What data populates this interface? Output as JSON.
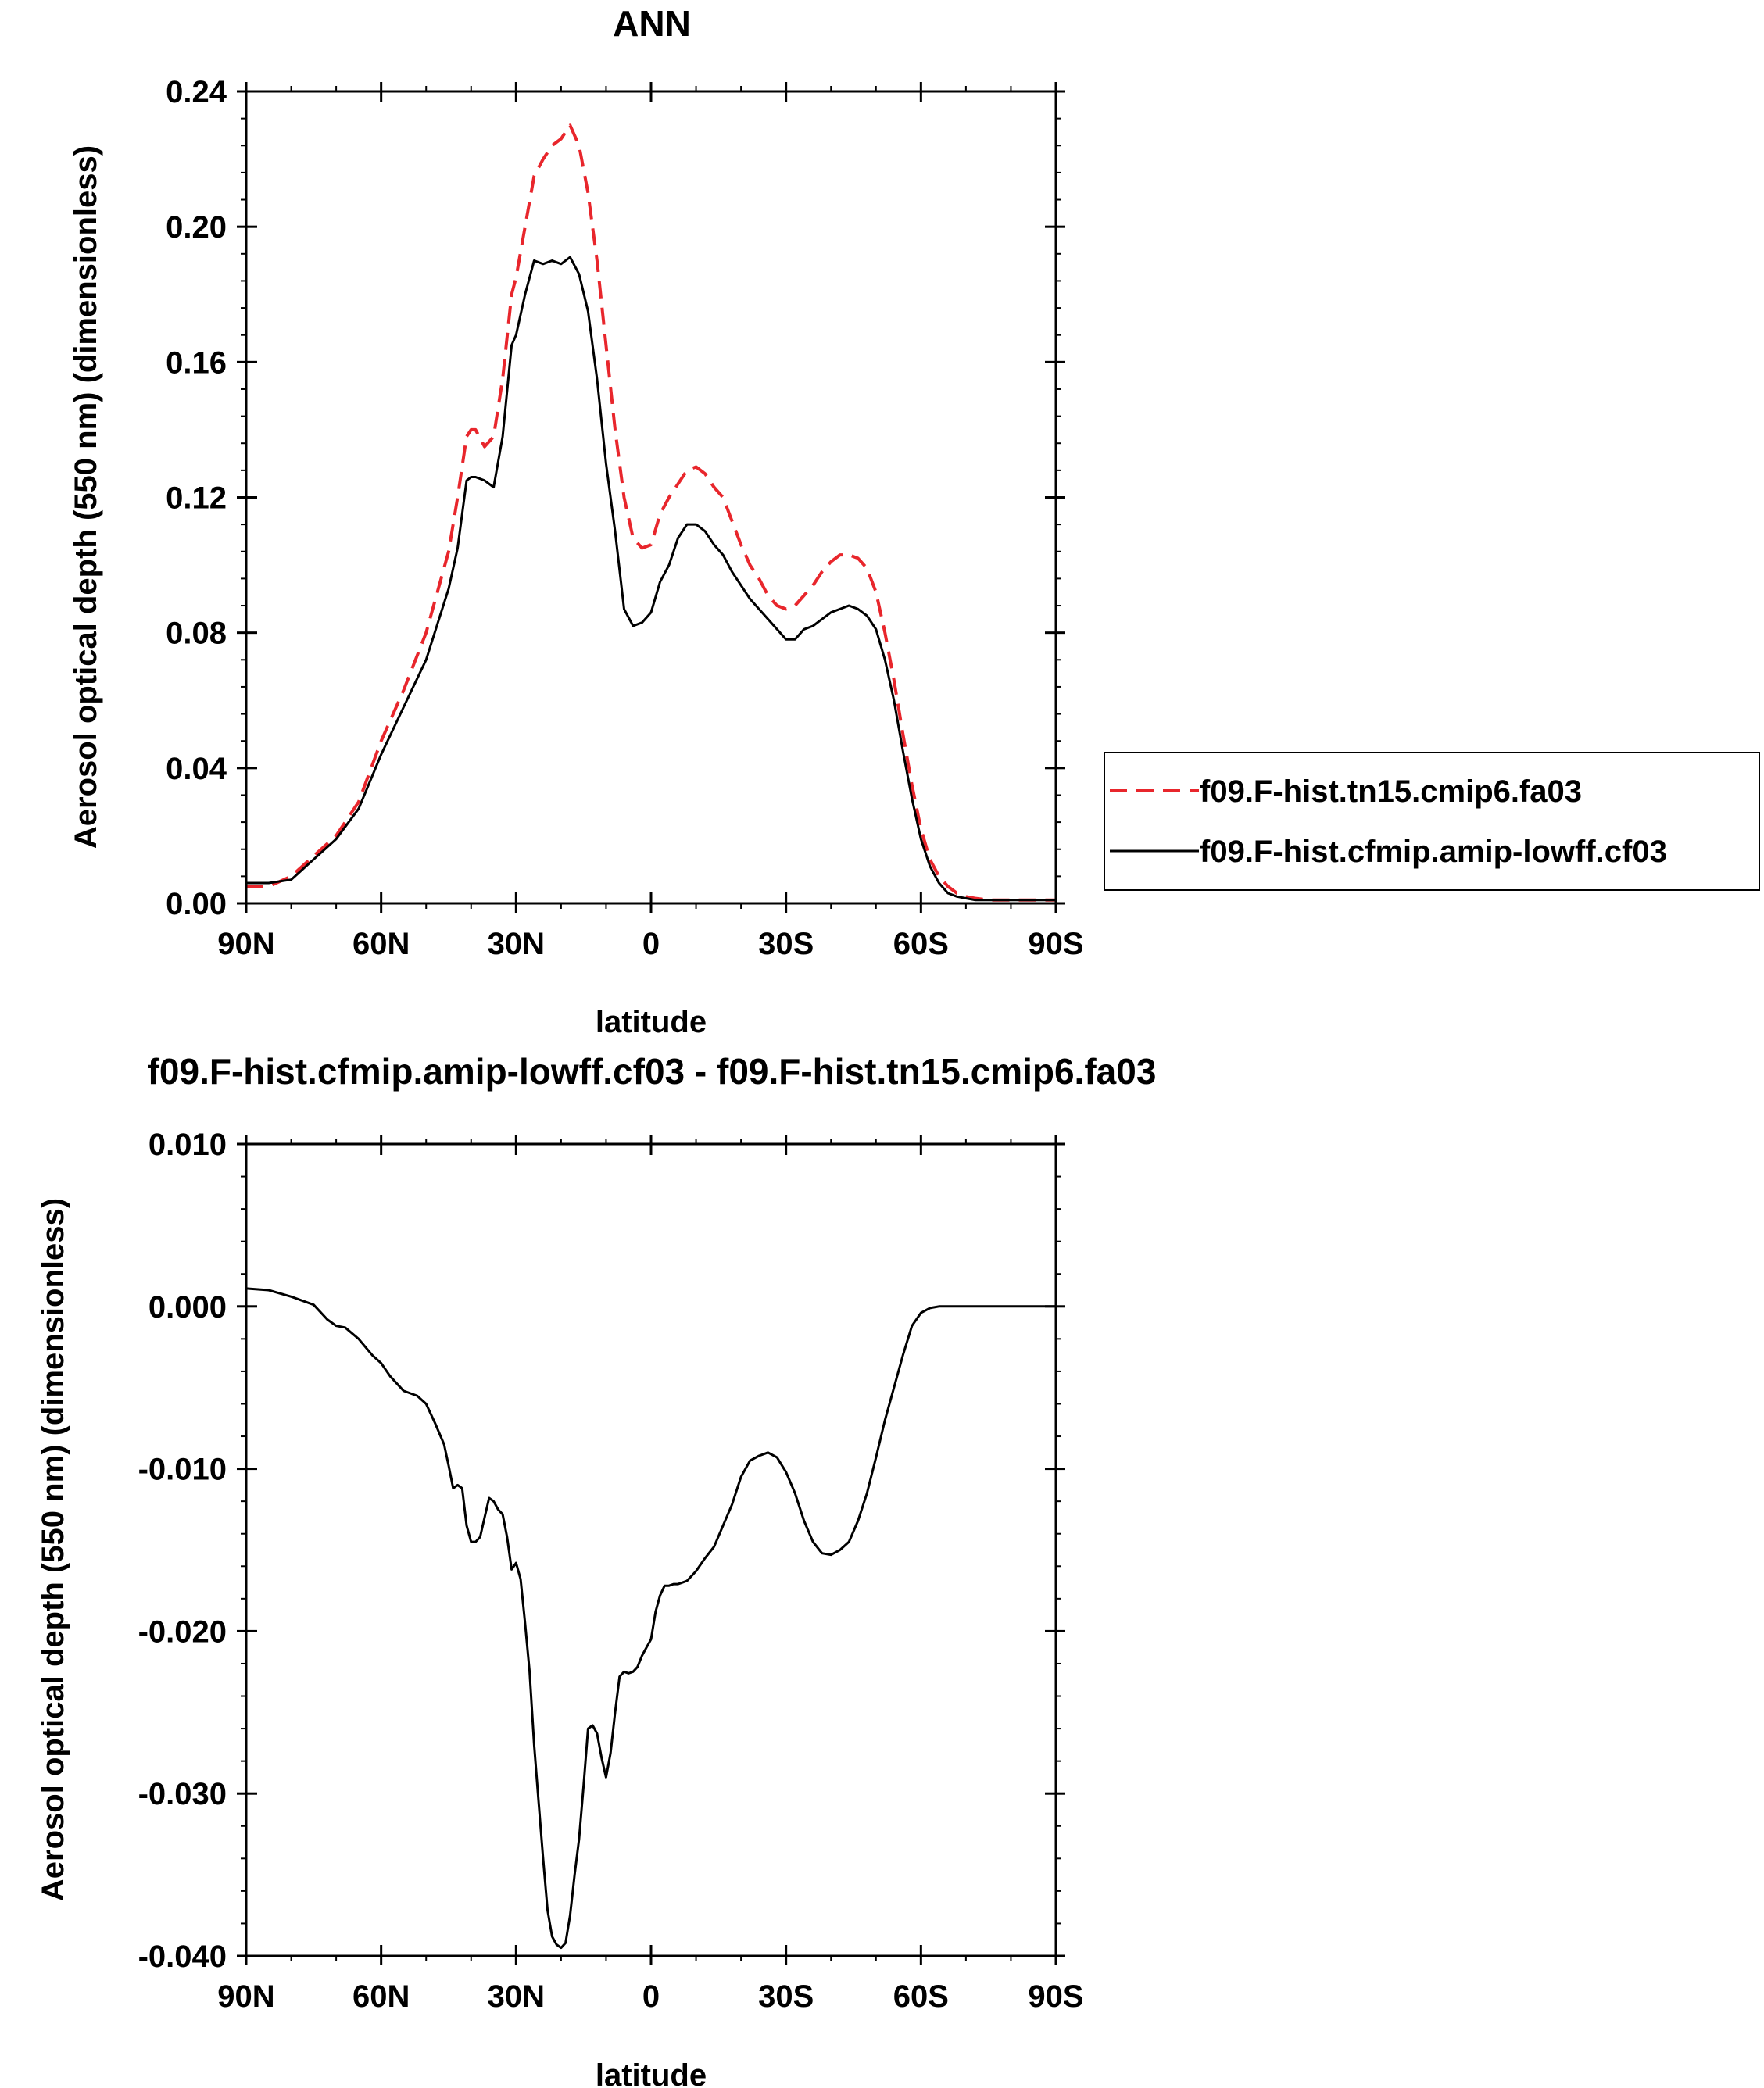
{
  "colors": {
    "red": "#e8262c",
    "black": "#000000"
  },
  "chart_data": [
    {
      "type": "line",
      "title": "ANN",
      "xlabel": "latitude",
      "ylabel": "Aerosol optical depth (550 nm) (dimensionless)",
      "xlim": [
        90,
        -90
      ],
      "ylim": [
        0.0,
        0.24
      ],
      "xticks": [
        90,
        60,
        30,
        0,
        -30,
        -60,
        -90
      ],
      "xtick_labels": [
        "90N",
        "60N",
        "30N",
        "0",
        "30S",
        "60S",
        "90S"
      ],
      "yticks": [
        0.0,
        0.04,
        0.08,
        0.12,
        0.16,
        0.2,
        0.24
      ],
      "ytick_labels": [
        "0.00",
        "0.04",
        "0.08",
        "0.12",
        "0.16",
        "0.20",
        "0.24"
      ],
      "legend": {
        "placement": "outside-right"
      },
      "series": [
        {
          "name": "f09.F-hist.tn15.cmip6.fa03",
          "style": "dashed",
          "color": "#e8262c",
          "x": [
            90,
            85,
            80,
            75,
            70,
            65,
            60,
            55,
            50,
            45,
            43,
            41,
            40,
            39,
            37,
            35,
            33,
            31,
            30,
            28,
            26,
            24,
            22,
            20,
            18,
            16,
            14,
            12,
            10,
            8,
            6,
            4,
            2,
            0,
            -2,
            -4,
            -6,
            -8,
            -10,
            -12,
            -14,
            -16,
            -18,
            -20,
            -22,
            -24,
            -26,
            -28,
            -30,
            -32,
            -34,
            -36,
            -38,
            -40,
            -42,
            -44,
            -46,
            -48,
            -50,
            -52,
            -54,
            -56,
            -58,
            -60,
            -62,
            -64,
            -66,
            -68,
            -70,
            -72,
            -75,
            -80,
            -85,
            -90
          ],
          "y": [
            0.005,
            0.005,
            0.008,
            0.014,
            0.02,
            0.03,
            0.048,
            0.063,
            0.08,
            0.104,
            0.12,
            0.138,
            0.14,
            0.14,
            0.135,
            0.138,
            0.155,
            0.18,
            0.185,
            0.2,
            0.215,
            0.22,
            0.224,
            0.226,
            0.23,
            0.224,
            0.21,
            0.19,
            0.165,
            0.14,
            0.12,
            0.108,
            0.105,
            0.106,
            0.115,
            0.12,
            0.124,
            0.128,
            0.129,
            0.127,
            0.123,
            0.12,
            0.113,
            0.106,
            0.1,
            0.096,
            0.091,
            0.088,
            0.087,
            0.088,
            0.091,
            0.094,
            0.098,
            0.101,
            0.103,
            0.103,
            0.102,
            0.099,
            0.092,
            0.08,
            0.066,
            0.05,
            0.035,
            0.022,
            0.013,
            0.008,
            0.005,
            0.003,
            0.002,
            0.0015,
            0.001,
            0.001,
            0.001,
            0.001
          ]
        },
        {
          "name": "f09.F-hist.cfmip.amip-lowff.cf03",
          "style": "solid",
          "color": "#000000",
          "x": [
            90,
            85,
            80,
            75,
            70,
            65,
            60,
            55,
            50,
            45,
            43,
            41,
            40,
            39,
            37,
            35,
            33,
            31,
            30,
            28,
            26,
            24,
            22,
            20,
            18,
            16,
            14,
            12,
            10,
            8,
            6,
            4,
            2,
            0,
            -2,
            -4,
            -6,
            -8,
            -10,
            -12,
            -14,
            -16,
            -18,
            -20,
            -22,
            -24,
            -26,
            -28,
            -30,
            -32,
            -34,
            -36,
            -38,
            -40,
            -42,
            -44,
            -46,
            -48,
            -50,
            -52,
            -54,
            -56,
            -58,
            -60,
            -62,
            -64,
            -66,
            -68,
            -70,
            -72,
            -75,
            -80,
            -85,
            -90
          ],
          "y": [
            0.006,
            0.006,
            0.007,
            0.013,
            0.019,
            0.028,
            0.044,
            0.058,
            0.072,
            0.093,
            0.105,
            0.125,
            0.126,
            0.126,
            0.125,
            0.123,
            0.138,
            0.165,
            0.168,
            0.18,
            0.19,
            0.189,
            0.19,
            0.189,
            0.191,
            0.186,
            0.175,
            0.155,
            0.13,
            0.11,
            0.087,
            0.082,
            0.083,
            0.086,
            0.095,
            0.1,
            0.108,
            0.112,
            0.112,
            0.11,
            0.106,
            0.103,
            0.098,
            0.094,
            0.09,
            0.087,
            0.084,
            0.081,
            0.078,
            0.078,
            0.081,
            0.082,
            0.084,
            0.086,
            0.087,
            0.088,
            0.087,
            0.085,
            0.081,
            0.072,
            0.06,
            0.045,
            0.031,
            0.019,
            0.011,
            0.006,
            0.003,
            0.002,
            0.0015,
            0.001,
            0.001,
            0.001,
            0.001,
            0.001
          ]
        }
      ]
    },
    {
      "type": "line",
      "title": "f09.F-hist.cfmip.amip-lowff.cf03 - f09.F-hist.tn15.cmip6.fa03",
      "xlabel": "latitude",
      "ylabel": "Aerosol optical depth (550 nm) (dimensionless)",
      "xlim": [
        90,
        -90
      ],
      "ylim": [
        -0.04,
        0.01
      ],
      "xticks": [
        90,
        60,
        30,
        0,
        -30,
        -60,
        -90
      ],
      "xtick_labels": [
        "90N",
        "60N",
        "30N",
        "0",
        "30S",
        "60S",
        "90S"
      ],
      "yticks": [
        -0.04,
        -0.03,
        -0.02,
        -0.01,
        0.0,
        0.01
      ],
      "ytick_labels": [
        "-0.040",
        "-0.030",
        "-0.020",
        "-0.010",
        "0.000",
        "0.010"
      ],
      "series": [
        {
          "style": "solid",
          "color": "#000000",
          "x": [
            90,
            85,
            80,
            75,
            72,
            70,
            68,
            65,
            62,
            60,
            58,
            55,
            52,
            50,
            48,
            46,
            45,
            44,
            43,
            42,
            41,
            40,
            39,
            38,
            37,
            36,
            35,
            34,
            33,
            32,
            31,
            30,
            29,
            28,
            27,
            26,
            25,
            24,
            23,
            22,
            21,
            20,
            19,
            18,
            17,
            16,
            15,
            14,
            13,
            12,
            11,
            10,
            9,
            8,
            7,
            6,
            5,
            4,
            3,
            2,
            1,
            0,
            -1,
            -2,
            -3,
            -4,
            -5,
            -6,
            -7,
            -8,
            -10,
            -12,
            -14,
            -16,
            -18,
            -20,
            -22,
            -24,
            -26,
            -28,
            -30,
            -32,
            -34,
            -36,
            -38,
            -40,
            -42,
            -44,
            -46,
            -48,
            -50,
            -52,
            -54,
            -56,
            -58,
            -60,
            -62,
            -64,
            -66,
            -68,
            -70,
            -72,
            -75,
            -80,
            -85,
            -90
          ],
          "y": [
            0.0011,
            0.001,
            0.0006,
            0.0001,
            -0.0008,
            -0.0012,
            -0.0013,
            -0.002,
            -0.003,
            -0.0035,
            -0.0043,
            -0.0052,
            -0.0055,
            -0.006,
            -0.0072,
            -0.0085,
            -0.0098,
            -0.0112,
            -0.011,
            -0.0112,
            -0.0135,
            -0.0145,
            -0.0145,
            -0.0142,
            -0.013,
            -0.0118,
            -0.012,
            -0.0125,
            -0.0128,
            -0.0142,
            -0.0162,
            -0.0158,
            -0.0168,
            -0.0195,
            -0.0225,
            -0.027,
            -0.0305,
            -0.034,
            -0.0372,
            -0.0388,
            -0.0393,
            -0.0395,
            -0.0392,
            -0.0375,
            -0.035,
            -0.0328,
            -0.0295,
            -0.026,
            -0.0258,
            -0.0263,
            -0.0278,
            -0.029,
            -0.0275,
            -0.025,
            -0.0228,
            -0.0225,
            -0.0226,
            -0.0225,
            -0.0222,
            -0.0215,
            -0.021,
            -0.0205,
            -0.0188,
            -0.0178,
            -0.0172,
            -0.0172,
            -0.0171,
            -0.0171,
            -0.017,
            -0.0169,
            -0.0163,
            -0.0155,
            -0.0148,
            -0.0135,
            -0.0122,
            -0.0105,
            -0.0095,
            -0.0092,
            -0.009,
            -0.0093,
            -0.0102,
            -0.0115,
            -0.0132,
            -0.0145,
            -0.0152,
            -0.0153,
            -0.015,
            -0.0145,
            -0.0132,
            -0.0115,
            -0.0093,
            -0.007,
            -0.005,
            -0.003,
            -0.0012,
            -0.0004,
            -0.0001,
            0.0,
            0.0,
            0.0,
            0.0,
            0.0,
            0.0,
            0.0,
            0.0,
            0.0
          ]
        }
      ]
    }
  ]
}
